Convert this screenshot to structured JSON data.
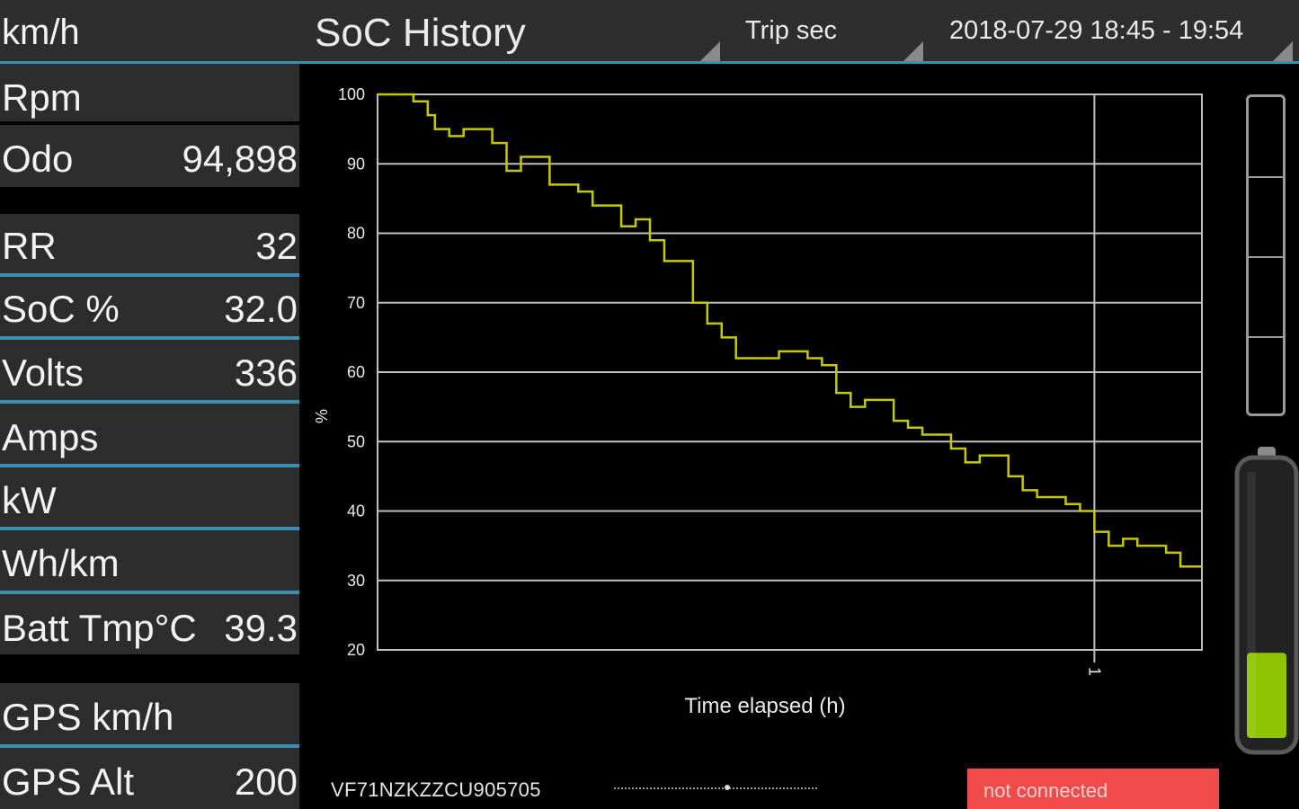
{
  "topbar": {
    "speed_label": "km/h",
    "screen_title": "SoC History",
    "x_mode": "Trip sec",
    "date_range": "2018-07-29 18:45 - 19:54"
  },
  "metrics": [
    {
      "label": "Rpm",
      "value": ""
    },
    {
      "label": "Odo",
      "value": "94,898"
    },
    {
      "label": "RR",
      "value": "32"
    },
    {
      "label": "SoC %",
      "value": "32.0"
    },
    {
      "label": "Volts",
      "value": "336"
    },
    {
      "label": "Amps",
      "value": ""
    },
    {
      "label": "kW",
      "value": ""
    },
    {
      "label": "Wh/km",
      "value": ""
    },
    {
      "label": "Batt Tmp°C",
      "value": "39.3"
    },
    {
      "label": "GPS km/h",
      "value": ""
    },
    {
      "label": "GPS Alt",
      "value": "200"
    }
  ],
  "chart_data": {
    "type": "line",
    "ylabel": "%",
    "xlabel": "Time elapsed (h)",
    "ylim": [
      20,
      100
    ],
    "xlim": [
      0,
      1.15
    ],
    "yticks": [
      100,
      90,
      80,
      70,
      60,
      50,
      40,
      30,
      20
    ],
    "xticks": [
      1
    ],
    "grid": true,
    "colors": {
      "line": "#c8c800",
      "grid": "#c0c0c0"
    },
    "series": [
      {
        "x": [
          0,
          0.02,
          0.05,
          0.07,
          0.08,
          0.1,
          0.12,
          0.14,
          0.16,
          0.18,
          0.2,
          0.22,
          0.24,
          0.26,
          0.28,
          0.3,
          0.32,
          0.34,
          0.36,
          0.38,
          0.4,
          0.42,
          0.44,
          0.46,
          0.48,
          0.5,
          0.52,
          0.54,
          0.56,
          0.58,
          0.6,
          0.62,
          0.64,
          0.66,
          0.68,
          0.7,
          0.72,
          0.74,
          0.76,
          0.78,
          0.8,
          0.82,
          0.84,
          0.86,
          0.88,
          0.9,
          0.92,
          0.94,
          0.96,
          0.98,
          1.0,
          1.02,
          1.04,
          1.06,
          1.08,
          1.1,
          1.12,
          1.15
        ],
        "y": [
          100,
          100,
          99,
          97,
          95,
          94,
          95,
          95,
          93,
          89,
          91,
          91,
          87,
          87,
          86,
          84,
          84,
          81,
          82,
          79,
          76,
          76,
          70,
          67,
          65,
          62,
          62,
          62,
          63,
          63,
          62,
          61,
          57,
          55,
          56,
          56,
          53,
          52,
          51,
          51,
          49,
          47,
          48,
          48,
          45,
          43,
          42,
          42,
          41,
          40,
          37,
          35,
          36,
          35,
          35,
          34,
          32,
          32
        ]
      }
    ]
  },
  "footer": {
    "vin": "VF71NZKZZCU905705",
    "status": "not connected"
  },
  "battery": {
    "level": 0.32,
    "colors": {
      "fill": "#8fc400",
      "shell": "#5a5a5a"
    }
  }
}
